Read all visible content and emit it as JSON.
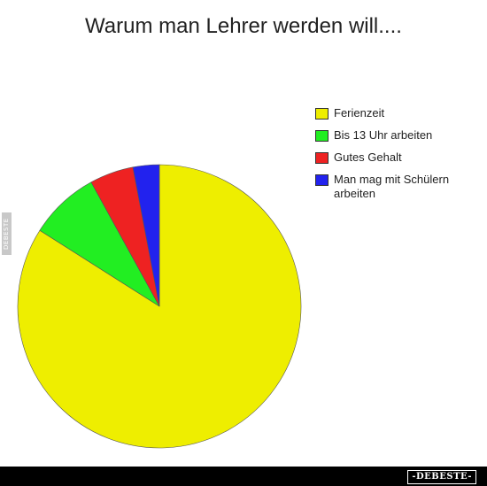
{
  "chart_data": {
    "type": "pie",
    "title": "Warum man Lehrer werden will....",
    "categories": [
      "Ferienzeit",
      "Bis 13 Uhr arbeiten",
      "Gutes Gehalt",
      "Man mag mit Schülern arbeiten"
    ],
    "values": [
      84,
      8,
      5,
      3
    ],
    "colors": [
      "#eeee00",
      "#22ee22",
      "#ee2222",
      "#2222ee"
    ],
    "legend_position": "right"
  },
  "legend": {
    "items": [
      {
        "label": "Ferienzeit",
        "color": "#eeee00"
      },
      {
        "label": "Bis 13 Uhr arbeiten",
        "color": "#22ee22"
      },
      {
        "label": "Gutes Gehalt",
        "color": "#ee2222"
      },
      {
        "label": "Man mag mit Schülern arbeiten",
        "color": "#2222ee"
      }
    ]
  },
  "watermark": {
    "side_text": "DEBESTE",
    "footer_logo": "-DEBESTE-"
  }
}
